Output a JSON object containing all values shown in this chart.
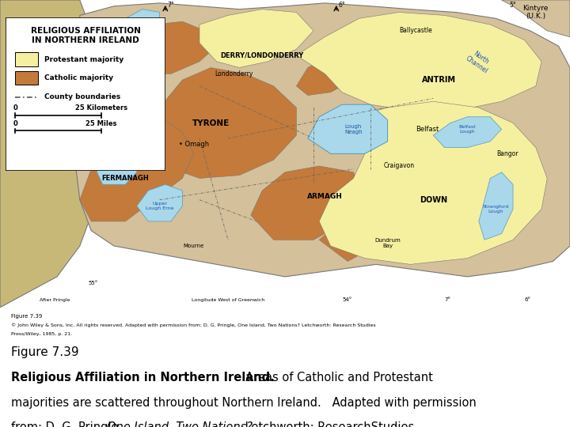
{
  "map_title": "RELIGIOUS AFFILIATION\nIN NORTHERN IRELAND",
  "legend_protestant": "Protestant majority",
  "legend_catholic": "Catholic majority",
  "legend_county": "County boundaries",
  "protestant_color": "#F5F0A0",
  "catholic_color": "#C47A3A",
  "background_color": "#FFFFFF",
  "map_bg_color": "#A8D8EA",
  "land_color": "#D4C09A",
  "ireland_color": "#C8B878",
  "caption_line1": "Figure 7.39",
  "caption_line2_bold": "Religious Affiliation in Northern Ireland.",
  "caption_line2_normal": "  Areas of Catholic and Protestant",
  "caption_line3": "majorities are scattered throughout Northern Ireland.   Adapted with permission",
  "caption_line4_normal": "from: D. G. Pringle,",
  "caption_line4_italic": "One Island, Two Nations?",
  "caption_line4_end": " Letchworth: ResearchStudies",
  "caption_line5": "Press/Wiley, 1985, p. 21.",
  "small_line1": "Figure 7.39",
  "small_line2": "© John Wiley & Sons, Inc. All rights reserved. Adapted with permission from: D. G. Pringle, One Island, Two Nations? Letchworth: Research Studies",
  "small_line3": "Press/Wiley, 1985, p. 21."
}
